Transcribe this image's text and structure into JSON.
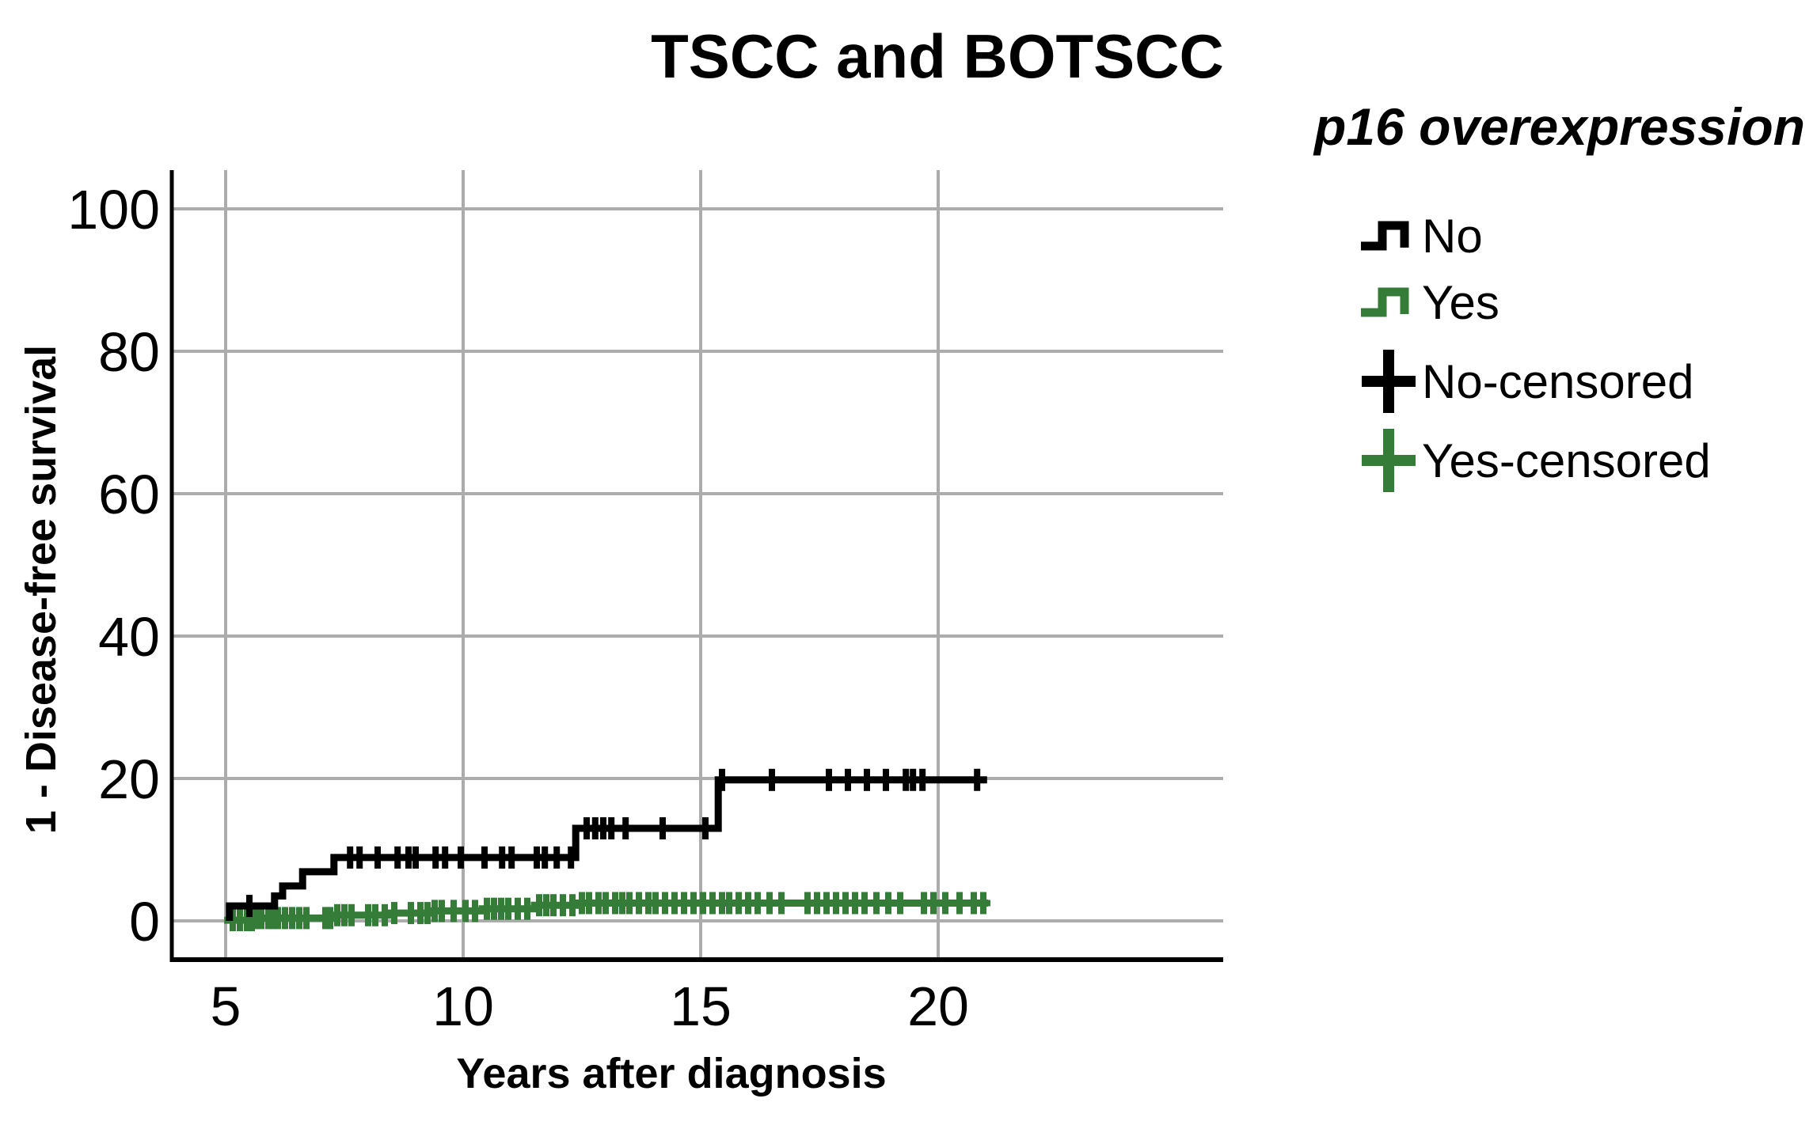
{
  "figure": {
    "title": "TSCC and BOTSCC",
    "x_axis_label": "Years after diagnosis",
    "y_axis_label": "1 - Disease-free survival"
  },
  "legend": {
    "title": "p16 overexpression",
    "items": [
      {
        "label": "No",
        "glyph": "step-line",
        "color": "#000000"
      },
      {
        "label": "Yes",
        "glyph": "step-line",
        "color": "#347C38"
      },
      {
        "label": "No-censored",
        "glyph": "plus",
        "color": "#000000"
      },
      {
        "label": "Yes-censored",
        "glyph": "plus",
        "color": "#347C38"
      }
    ]
  },
  "chart_data": {
    "type": "line",
    "subtype": "kaplan-meier-step",
    "title": "TSCC and BOTSCC",
    "xlabel": "Years after diagnosis",
    "ylabel": "1 - Disease-free survival",
    "x_ticks": [
      5,
      10,
      15,
      20
    ],
    "y_ticks": [
      0,
      20,
      40,
      60,
      80,
      100
    ],
    "xlim": [
      3.9,
      26.0
    ],
    "ylim": [
      -5.5,
      105.5
    ],
    "grid": true,
    "gridline_color": "#ACACAC",
    "axis_color": "#000000",
    "legend_position": "right",
    "series": [
      {
        "name": "No",
        "color": "#000000",
        "start": [
          5.08,
          0
        ],
        "steps": [
          [
            5.08,
            2.1
          ],
          [
            6.03,
            3.5
          ],
          [
            6.2,
            4.9
          ],
          [
            6.62,
            6.9
          ],
          [
            7.28,
            8.9
          ],
          [
            12.37,
            13.0
          ],
          [
            15.37,
            19.8
          ]
        ],
        "end_x": 21.03,
        "censored_x": [
          5.5,
          7.62,
          7.82,
          8.2,
          8.62,
          8.85,
          9.0,
          9.42,
          9.62,
          9.95,
          10.45,
          10.82,
          11.02,
          11.55,
          11.72,
          11.97,
          12.27,
          12.6,
          12.78,
          12.95,
          13.12,
          13.42,
          14.2,
          15.1,
          15.45,
          16.5,
          17.7,
          18.1,
          18.5,
          18.9,
          19.32,
          19.47,
          19.67,
          20.82
        ]
      },
      {
        "name": "Yes",
        "color": "#347C38",
        "start": [
          4.97,
          0.1
        ],
        "steps": [
          [
            5.6,
            0.4
          ],
          [
            7.3,
            0.8
          ],
          [
            8.4,
            1.1
          ],
          [
            9.3,
            1.4
          ],
          [
            10.4,
            1.7
          ],
          [
            11.5,
            2.2
          ],
          [
            12.4,
            2.5
          ]
        ],
        "end_x": 21.05,
        "censored_x": [
          5.15,
          5.3,
          5.45,
          5.55,
          5.65,
          5.75,
          5.9,
          6.0,
          6.1,
          6.25,
          6.4,
          6.55,
          6.7,
          7.1,
          7.2,
          7.35,
          7.5,
          7.65,
          8.0,
          8.15,
          8.35,
          8.55,
          8.9,
          9.1,
          9.25,
          9.4,
          9.55,
          9.8,
          10.05,
          10.25,
          10.5,
          10.65,
          10.8,
          10.95,
          11.15,
          11.35,
          11.6,
          11.75,
          11.9,
          12.1,
          12.3,
          12.5,
          12.65,
          12.85,
          13.0,
          13.2,
          13.35,
          13.5,
          13.7,
          13.9,
          14.05,
          14.25,
          14.45,
          14.65,
          14.85,
          15.05,
          15.25,
          15.45,
          15.6,
          15.8,
          16.0,
          16.2,
          16.45,
          16.7,
          17.25,
          17.45,
          17.65,
          17.85,
          18.05,
          18.25,
          18.45,
          18.7,
          18.95,
          19.2,
          19.7,
          19.9,
          20.15,
          20.45,
          20.75,
          20.95
        ]
      }
    ]
  }
}
